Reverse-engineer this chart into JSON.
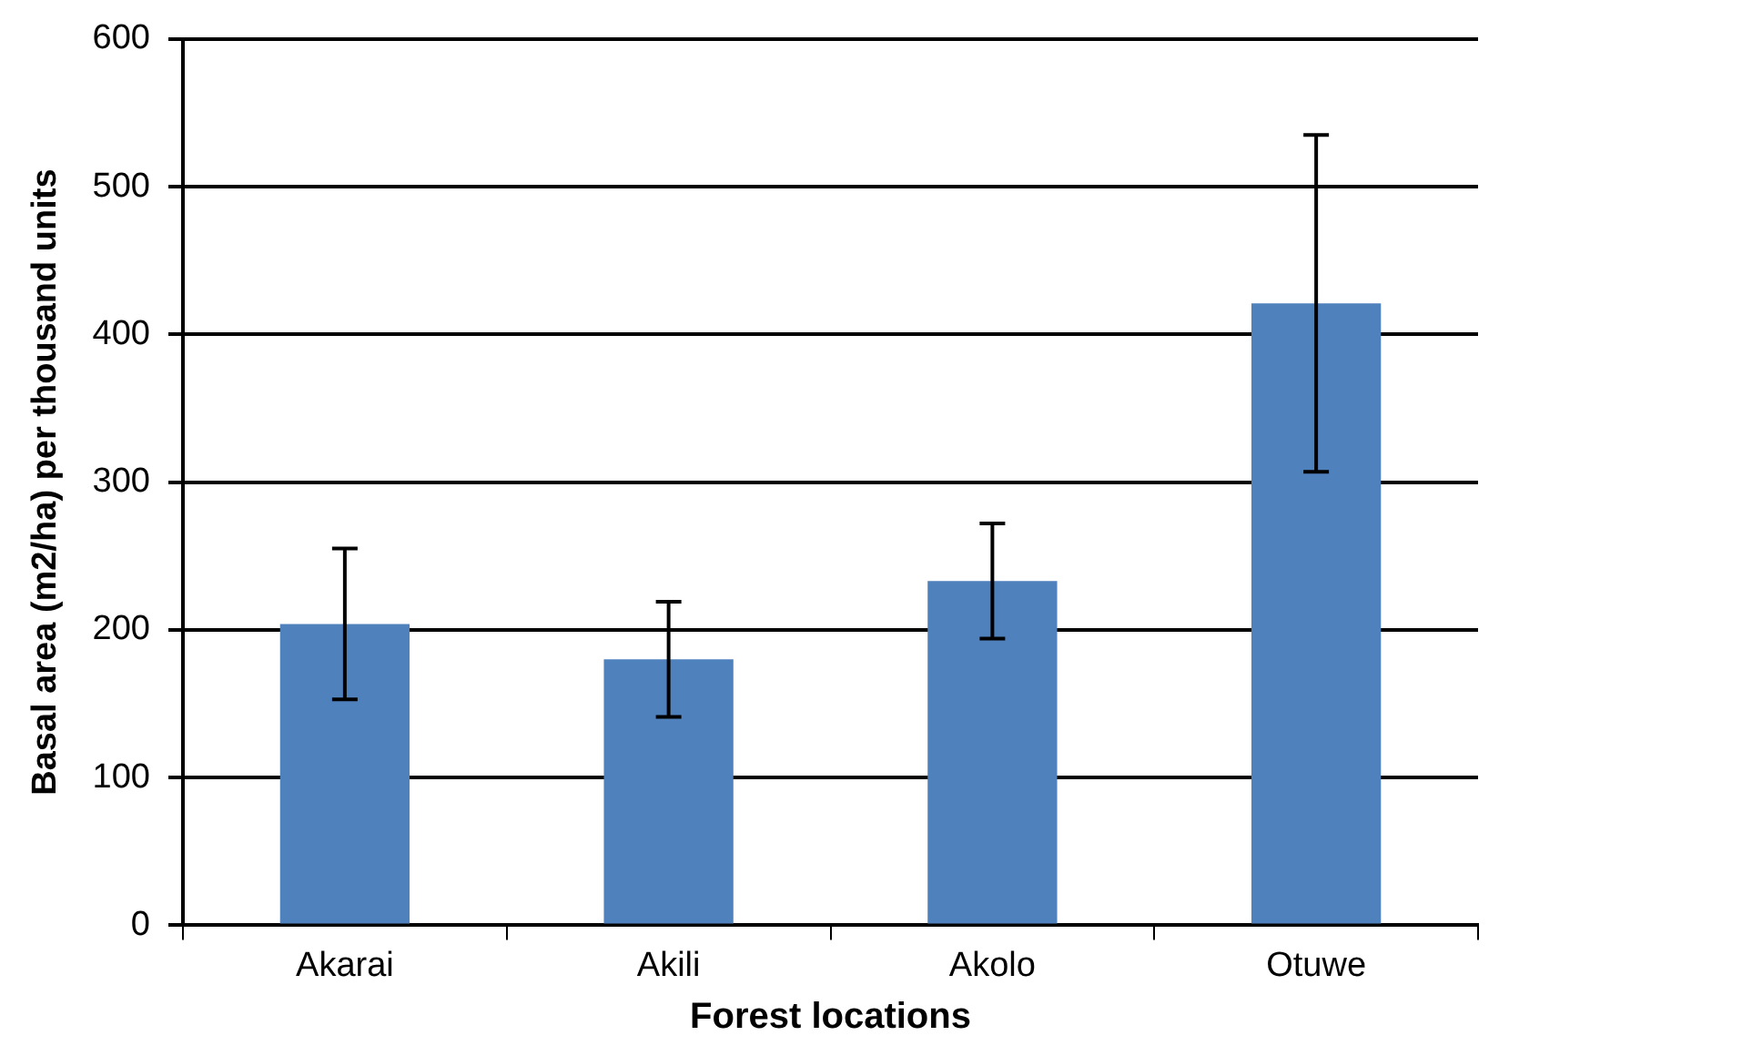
{
  "chart_data": {
    "type": "bar",
    "xlabel": "Forest locations",
    "ylabel": "Basal area (m2/ha) per thousand units",
    "categories": [
      "Akarai",
      "Akili",
      "Akolo",
      "Otuwe"
    ],
    "values": [
      204,
      180,
      233,
      421
    ],
    "errors": [
      51,
      39,
      39,
      114
    ],
    "color": "#4f81bd",
    "ylim": [
      0,
      600
    ],
    "yticks": [
      0,
      100,
      200,
      300,
      400,
      500,
      600
    ],
    "grid": "y"
  }
}
